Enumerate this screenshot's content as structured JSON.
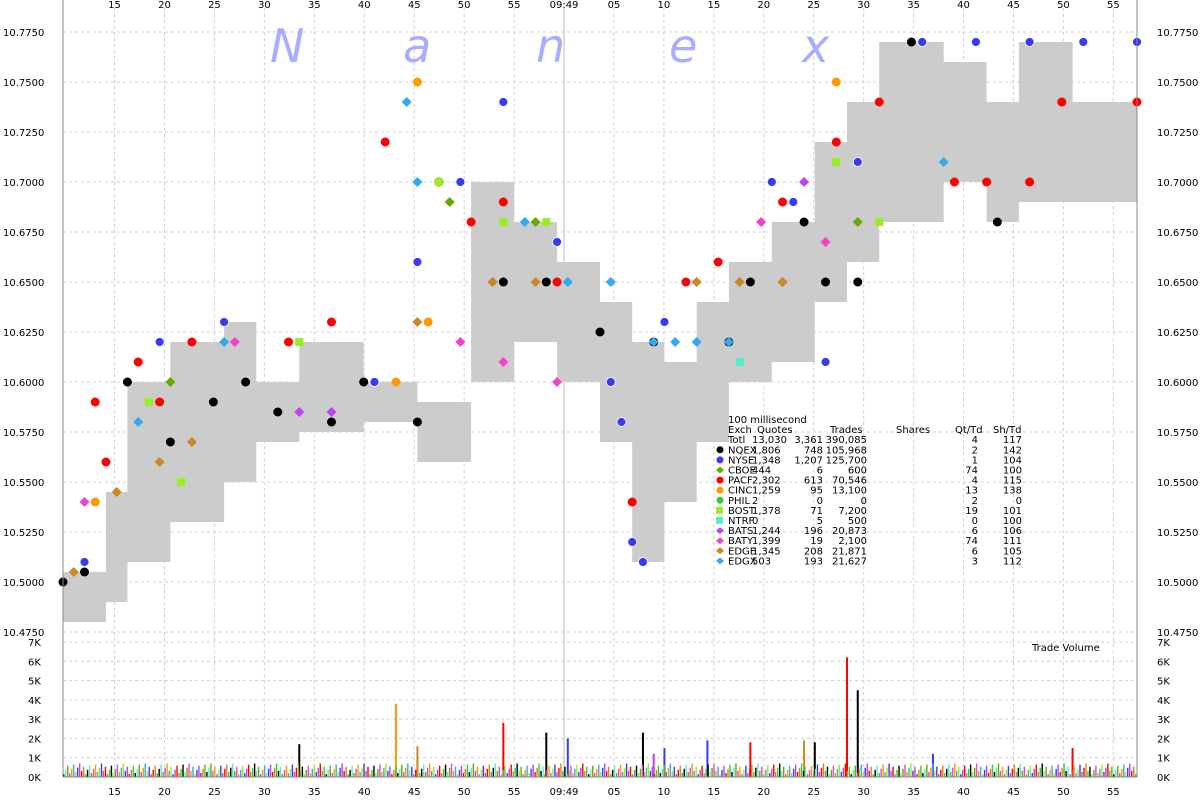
{
  "watermark_letters": [
    "N",
    "a",
    "n",
    "e",
    "x"
  ],
  "chart_data": [
    {
      "type": "scatter",
      "name_label": "price",
      "x_tick_labels": [
        "15",
        "20",
        "25",
        "30",
        "35",
        "40",
        "45",
        "50",
        "55",
        "09:49",
        "05",
        "10",
        "15",
        "20",
        "25",
        "30",
        "35",
        "40",
        "45",
        "50",
        "55"
      ],
      "y_ticks": [
        "10.4750",
        "10.5000",
        "10.5250",
        "10.5500",
        "10.5750",
        "10.6000",
        "10.6250",
        "10.6500",
        "10.6750",
        "10.7000",
        "10.7250",
        "10.7500",
        "10.7750"
      ],
      "ylim": [
        10.475,
        10.775
      ],
      "grid": true,
      "exchange_colors": {
        "NQEX": "#000000",
        "NYSE": "#3a3af0",
        "CBOE": "#66aa00",
        "PACF": "#ff0000",
        "CINC": "#ff9900",
        "PHIL": "#33cc33",
        "BOST": "#99ee22",
        "NTRF": "#55eecc",
        "BATS": "#bb44ee",
        "BATY": "#ee44cc",
        "EDGE": "#cc8822",
        "EDGX": "#33aaee"
      },
      "spread_band": [
        {
          "t": 0.0,
          "bid": 10.48,
          "ask": 10.505
        },
        {
          "t": 0.04,
          "bid": 10.49,
          "ask": 10.545
        },
        {
          "t": 0.06,
          "bid": 10.51,
          "ask": 10.6
        },
        {
          "t": 0.1,
          "bid": 10.53,
          "ask": 10.62
        },
        {
          "t": 0.15,
          "bid": 10.55,
          "ask": 10.63
        },
        {
          "t": 0.18,
          "bid": 10.57,
          "ask": 10.6
        },
        {
          "t": 0.22,
          "bid": 10.575,
          "ask": 10.62
        },
        {
          "t": 0.28,
          "bid": 10.58,
          "ask": 10.6
        },
        {
          "t": 0.33,
          "bid": 10.56,
          "ask": 10.59
        },
        {
          "t": 0.38,
          "bid": 10.6,
          "ask": 10.7
        },
        {
          "t": 0.42,
          "bid": 10.62,
          "ask": 10.68
        },
        {
          "t": 0.46,
          "bid": 10.6,
          "ask": 10.66
        },
        {
          "t": 0.5,
          "bid": 10.57,
          "ask": 10.64
        },
        {
          "t": 0.53,
          "bid": 10.51,
          "ask": 10.62
        },
        {
          "t": 0.56,
          "bid": 10.54,
          "ask": 10.61
        },
        {
          "t": 0.59,
          "bid": 10.57,
          "ask": 10.64
        },
        {
          "t": 0.62,
          "bid": 10.6,
          "ask": 10.66
        },
        {
          "t": 0.66,
          "bid": 10.61,
          "ask": 10.68
        },
        {
          "t": 0.7,
          "bid": 10.64,
          "ask": 10.72
        },
        {
          "t": 0.73,
          "bid": 10.66,
          "ask": 10.74
        },
        {
          "t": 0.76,
          "bid": 10.68,
          "ask": 10.77
        },
        {
          "t": 0.82,
          "bid": 10.7,
          "ask": 10.76
        },
        {
          "t": 0.86,
          "bid": 10.68,
          "ask": 10.74
        },
        {
          "t": 0.89,
          "bid": 10.69,
          "ask": 10.77
        },
        {
          "t": 0.94,
          "bid": 10.69,
          "ask": 10.74
        },
        {
          "t": 1.0,
          "bid": 10.69,
          "ask": 10.74
        }
      ],
      "points": [
        {
          "ex": "NQEX",
          "pts": [
            [
              0.0,
              10.5
            ],
            [
              0.02,
              10.505
            ],
            [
              0.06,
              10.6
            ],
            [
              0.1,
              10.57
            ],
            [
              0.14,
              10.59
            ],
            [
              0.17,
              10.6
            ],
            [
              0.2,
              10.585
            ],
            [
              0.25,
              10.58
            ],
            [
              0.28,
              10.6
            ],
            [
              0.33,
              10.58
            ],
            [
              0.41,
              10.65
            ],
            [
              0.45,
              10.65
            ],
            [
              0.5,
              10.625
            ],
            [
              0.55,
              10.62
            ],
            [
              0.62,
              10.62
            ],
            [
              0.64,
              10.65
            ],
            [
              0.69,
              10.68
            ],
            [
              0.71,
              10.65
            ],
            [
              0.74,
              10.65
            ],
            [
              0.79,
              10.77
            ],
            [
              0.87,
              10.68
            ]
          ]
        },
        {
          "ex": "NYSE",
          "pts": [
            [
              0.02,
              10.51
            ],
            [
              0.03,
              10.59
            ],
            [
              0.09,
              10.62
            ],
            [
              0.15,
              10.63
            ],
            [
              0.29,
              10.6
            ],
            [
              0.33,
              10.66
            ],
            [
              0.37,
              10.7
            ],
            [
              0.41,
              10.74
            ],
            [
              0.46,
              10.67
            ],
            [
              0.51,
              10.6
            ],
            [
              0.52,
              10.58
            ],
            [
              0.53,
              10.52
            ],
            [
              0.54,
              10.51
            ],
            [
              0.56,
              10.63
            ],
            [
              0.66,
              10.7
            ],
            [
              0.68,
              10.69
            ],
            [
              0.71,
              10.61
            ],
            [
              0.74,
              10.71
            ],
            [
              0.8,
              10.77
            ],
            [
              0.85,
              10.77
            ],
            [
              0.9,
              10.77
            ],
            [
              0.95,
              10.77
            ],
            [
              1.0,
              10.77
            ]
          ]
        },
        {
          "ex": "PACF",
          "pts": [
            [
              0.03,
              10.59
            ],
            [
              0.04,
              10.56
            ],
            [
              0.07,
              10.61
            ],
            [
              0.09,
              10.59
            ],
            [
              0.12,
              10.62
            ],
            [
              0.21,
              10.62
            ],
            [
              0.25,
              10.63
            ],
            [
              0.3,
              10.72
            ],
            [
              0.35,
              10.7
            ],
            [
              0.38,
              10.68
            ],
            [
              0.41,
              10.69
            ],
            [
              0.46,
              10.65
            ],
            [
              0.53,
              10.54
            ],
            [
              0.58,
              10.65
            ],
            [
              0.61,
              10.66
            ],
            [
              0.67,
              10.69
            ],
            [
              0.72,
              10.72
            ],
            [
              0.76,
              10.74
            ],
            [
              0.83,
              10.7
            ],
            [
              0.86,
              10.7
            ],
            [
              0.9,
              10.7
            ],
            [
              0.93,
              10.74
            ],
            [
              1.0,
              10.74
            ]
          ]
        },
        {
          "ex": "CBOE",
          "pts": [
            [
              0.1,
              10.6
            ],
            [
              0.36,
              10.69
            ],
            [
              0.44,
              10.68
            ],
            [
              0.74,
              10.68
            ]
          ]
        },
        {
          "ex": "CINC",
          "pts": [
            [
              0.03,
              10.54
            ],
            [
              0.31,
              10.6
            ],
            [
              0.33,
              10.75
            ],
            [
              0.34,
              10.63
            ],
            [
              0.72,
              10.75
            ]
          ]
        },
        {
          "ex": "BOST",
          "pts": [
            [
              0.08,
              10.59
            ],
            [
              0.11,
              10.55
            ],
            [
              0.22,
              10.62
            ],
            [
              0.35,
              10.7
            ],
            [
              0.41,
              10.68
            ],
            [
              0.45,
              10.68
            ],
            [
              0.72,
              10.71
            ],
            [
              0.76,
              10.68
            ]
          ]
        },
        {
          "ex": "NTRF",
          "pts": [
            [
              0.63,
              10.61
            ]
          ]
        },
        {
          "ex": "BATS",
          "pts": [
            [
              0.22,
              10.585
            ],
            [
              0.25,
              10.585
            ],
            [
              0.4,
              10.65
            ],
            [
              0.59,
              10.65
            ],
            [
              0.63,
              10.65
            ],
            [
              0.67,
              10.65
            ],
            [
              0.69,
              10.7
            ]
          ]
        },
        {
          "ex": "BATY",
          "pts": [
            [
              0.02,
              10.54
            ],
            [
              0.16,
              10.62
            ],
            [
              0.37,
              10.62
            ],
            [
              0.41,
              10.61
            ],
            [
              0.46,
              10.6
            ],
            [
              0.65,
              10.68
            ],
            [
              0.71,
              10.67
            ]
          ]
        },
        {
          "ex": "EDGE",
          "pts": [
            [
              0.01,
              10.505
            ],
            [
              0.05,
              10.545
            ],
            [
              0.09,
              10.56
            ],
            [
              0.12,
              10.57
            ],
            [
              0.33,
              10.63
            ],
            [
              0.4,
              10.65
            ],
            [
              0.44,
              10.65
            ],
            [
              0.59,
              10.65
            ],
            [
              0.63,
              10.65
            ],
            [
              0.67,
              10.65
            ]
          ]
        },
        {
          "ex": "EDGX",
          "pts": [
            [
              0.07,
              10.58
            ],
            [
              0.15,
              10.62
            ],
            [
              0.32,
              10.74
            ],
            [
              0.33,
              10.7
            ],
            [
              0.43,
              10.68
            ],
            [
              0.47,
              10.65
            ],
            [
              0.51,
              10.65
            ],
            [
              0.55,
              10.62
            ],
            [
              0.57,
              10.62
            ],
            [
              0.59,
              10.62
            ],
            [
              0.62,
              10.62
            ],
            [
              0.82,
              10.71
            ]
          ]
        }
      ],
      "stats": {
        "title": "100 millisecond",
        "headers": [
          "Exch",
          "Quotes",
          "Trades",
          "Shares",
          "Qt/Td",
          "Sh/Td"
        ],
        "rows": [
          {
            "exch": "Totl",
            "quotes": "13,030",
            "trades": "3,361",
            "shares": "390,085",
            "qt_td": "4",
            "sh_td": "117"
          },
          {
            "exch": "NQEX",
            "quotes": "1,806",
            "trades": "748",
            "shares": "105,968",
            "qt_td": "2",
            "sh_td": "142"
          },
          {
            "exch": "NYSE",
            "quotes": "1,348",
            "trades": "1,207",
            "shares": "125,700",
            "qt_td": "1",
            "sh_td": "104"
          },
          {
            "exch": "CBOE",
            "quotes": "444",
            "trades": "6",
            "shares": "600",
            "qt_td": "74",
            "sh_td": "100"
          },
          {
            "exch": "PACF",
            "quotes": "2,302",
            "trades": "613",
            "shares": "70,546",
            "qt_td": "4",
            "sh_td": "115"
          },
          {
            "exch": "CINC",
            "quotes": "1,259",
            "trades": "95",
            "shares": "13,100",
            "qt_td": "13",
            "sh_td": "138"
          },
          {
            "exch": "PHIL",
            "quotes": "2",
            "trades": "0",
            "shares": "0",
            "qt_td": "2",
            "sh_td": "0"
          },
          {
            "exch": "BOST",
            "quotes": "1,378",
            "trades": "71",
            "shares": "7,200",
            "qt_td": "19",
            "sh_td": "101"
          },
          {
            "exch": "NTRF",
            "quotes": "0",
            "trades": "5",
            "shares": "500",
            "qt_td": "0",
            "sh_td": "100"
          },
          {
            "exch": "BATS",
            "quotes": "1,244",
            "trades": "196",
            "shares": "20,873",
            "qt_td": "6",
            "sh_td": "106"
          },
          {
            "exch": "BATY",
            "quotes": "1,399",
            "trades": "19",
            "shares": "2,100",
            "qt_td": "74",
            "sh_td": "111"
          },
          {
            "exch": "EDGE",
            "quotes": "1,345",
            "trades": "208",
            "shares": "21,871",
            "qt_td": "6",
            "sh_td": "105"
          },
          {
            "exch": "EDGX",
            "quotes": "503",
            "trades": "193",
            "shares": "21,627",
            "qt_td": "3",
            "sh_td": "112"
          }
        ]
      }
    },
    {
      "type": "bar",
      "label": "Trade Volume",
      "y_ticks": [
        "0K",
        "1K",
        "2K",
        "3K",
        "4K",
        "5K",
        "6K",
        "7K"
      ],
      "ylim": [
        0,
        7000
      ],
      "notable_bars": [
        {
          "t": 0.22,
          "v": 1700,
          "ex": "NQEX"
        },
        {
          "t": 0.31,
          "v": 3800,
          "ex": "CINC"
        },
        {
          "t": 0.33,
          "v": 1600,
          "ex": "EDGE"
        },
        {
          "t": 0.41,
          "v": 2800,
          "ex": "PACF"
        },
        {
          "t": 0.45,
          "v": 2300,
          "ex": "NQEX"
        },
        {
          "t": 0.47,
          "v": 2000,
          "ex": "NYSE"
        },
        {
          "t": 0.54,
          "v": 2300,
          "ex": "NQEX"
        },
        {
          "t": 0.55,
          "v": 1200,
          "ex": "BATS"
        },
        {
          "t": 0.56,
          "v": 1500,
          "ex": "NYSE"
        },
        {
          "t": 0.6,
          "v": 1900,
          "ex": "NYSE"
        },
        {
          "t": 0.64,
          "v": 1800,
          "ex": "PACF"
        },
        {
          "t": 0.69,
          "v": 1900,
          "ex": "EDGE"
        },
        {
          "t": 0.7,
          "v": 1800,
          "ex": "NQEX"
        },
        {
          "t": 0.73,
          "v": 6200,
          "ex": "PACF"
        },
        {
          "t": 0.74,
          "v": 4500,
          "ex": "NQEX"
        },
        {
          "t": 0.81,
          "v": 1200,
          "ex": "NYSE"
        },
        {
          "t": 0.94,
          "v": 1500,
          "ex": "PACF"
        }
      ]
    }
  ]
}
